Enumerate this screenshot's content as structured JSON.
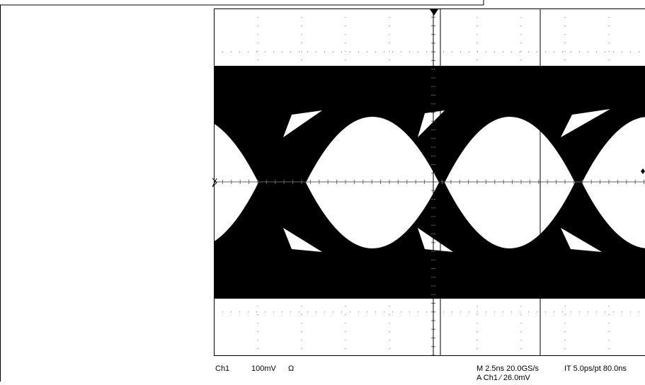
{
  "readout": {
    "channel": "Ch1",
    "scale": "100mV",
    "coupling": "Ω",
    "timebase": "M 2.5ns 20.0GS/s",
    "interpolation": "IT 5.0ps/pt 80.0ns",
    "trigger": "A Ch1 ⁄ 26.0mV"
  }
}
